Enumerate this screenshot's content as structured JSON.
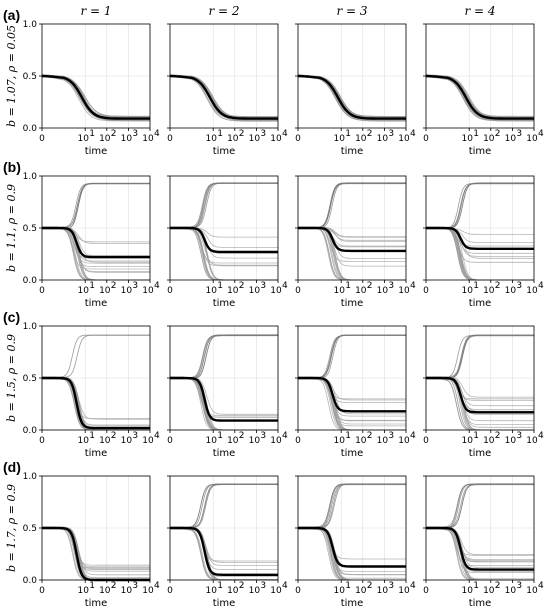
{
  "chart_data": {
    "type": "line",
    "columns": [
      "r = 1",
      "r = 2",
      "r = 3",
      "r = 4"
    ],
    "xlabel": "time",
    "x_scale": "symlog",
    "x_ticks": [
      0,
      10,
      100,
      1000,
      10000
    ],
    "x_tick_labels": [
      "0",
      "10",
      "10",
      "10",
      "10"
    ],
    "x_tick_exponents": [
      "",
      "1",
      "2",
      "3",
      "4"
    ],
    "y_ticks": [
      0.0,
      0.5,
      1.0
    ],
    "y_tick_labels": [
      "0.0",
      "0.5",
      "1.0"
    ],
    "ylim": [
      0,
      1
    ],
    "grid": true,
    "rows": [
      {
        "panel": "(a)",
        "ylabel": "b = 1.07, ρ = 0.05",
        "initial": 0.5,
        "panels": [
          {
            "mean": 0.09,
            "upper": null
          },
          {
            "mean": 0.09,
            "upper": null
          },
          {
            "mean": 0.09,
            "upper": null
          },
          {
            "mean": 0.09,
            "upper": null
          }
        ]
      },
      {
        "panel": "(b)",
        "ylabel": "b = 1.1, ρ = 0.9",
        "initial": 0.5,
        "panels": [
          {
            "mean": 0.22,
            "upper": 0.93
          },
          {
            "mean": 0.27,
            "upper": 0.93
          },
          {
            "mean": 0.28,
            "upper": 0.93
          },
          {
            "mean": 0.3,
            "upper": 0.93
          }
        ]
      },
      {
        "panel": "(c)",
        "ylabel": "b = 1.5, ρ = 0.9",
        "initial": 0.5,
        "panels": [
          {
            "mean": 0.02,
            "upper": 0.91
          },
          {
            "mean": 0.09,
            "upper": 0.91
          },
          {
            "mean": 0.18,
            "upper": 0.91
          },
          {
            "mean": 0.17,
            "upper": 0.91
          }
        ]
      },
      {
        "panel": "(d)",
        "ylabel": "b = 1.7, ρ = 0.9",
        "initial": 0.5,
        "panels": [
          {
            "mean": 0.0,
            "upper": null
          },
          {
            "mean": 0.05,
            "upper": 0.92
          },
          {
            "mean": 0.13,
            "upper": 0.92
          },
          {
            "mean": 0.1,
            "upper": 0.92
          }
        ]
      }
    ]
  }
}
